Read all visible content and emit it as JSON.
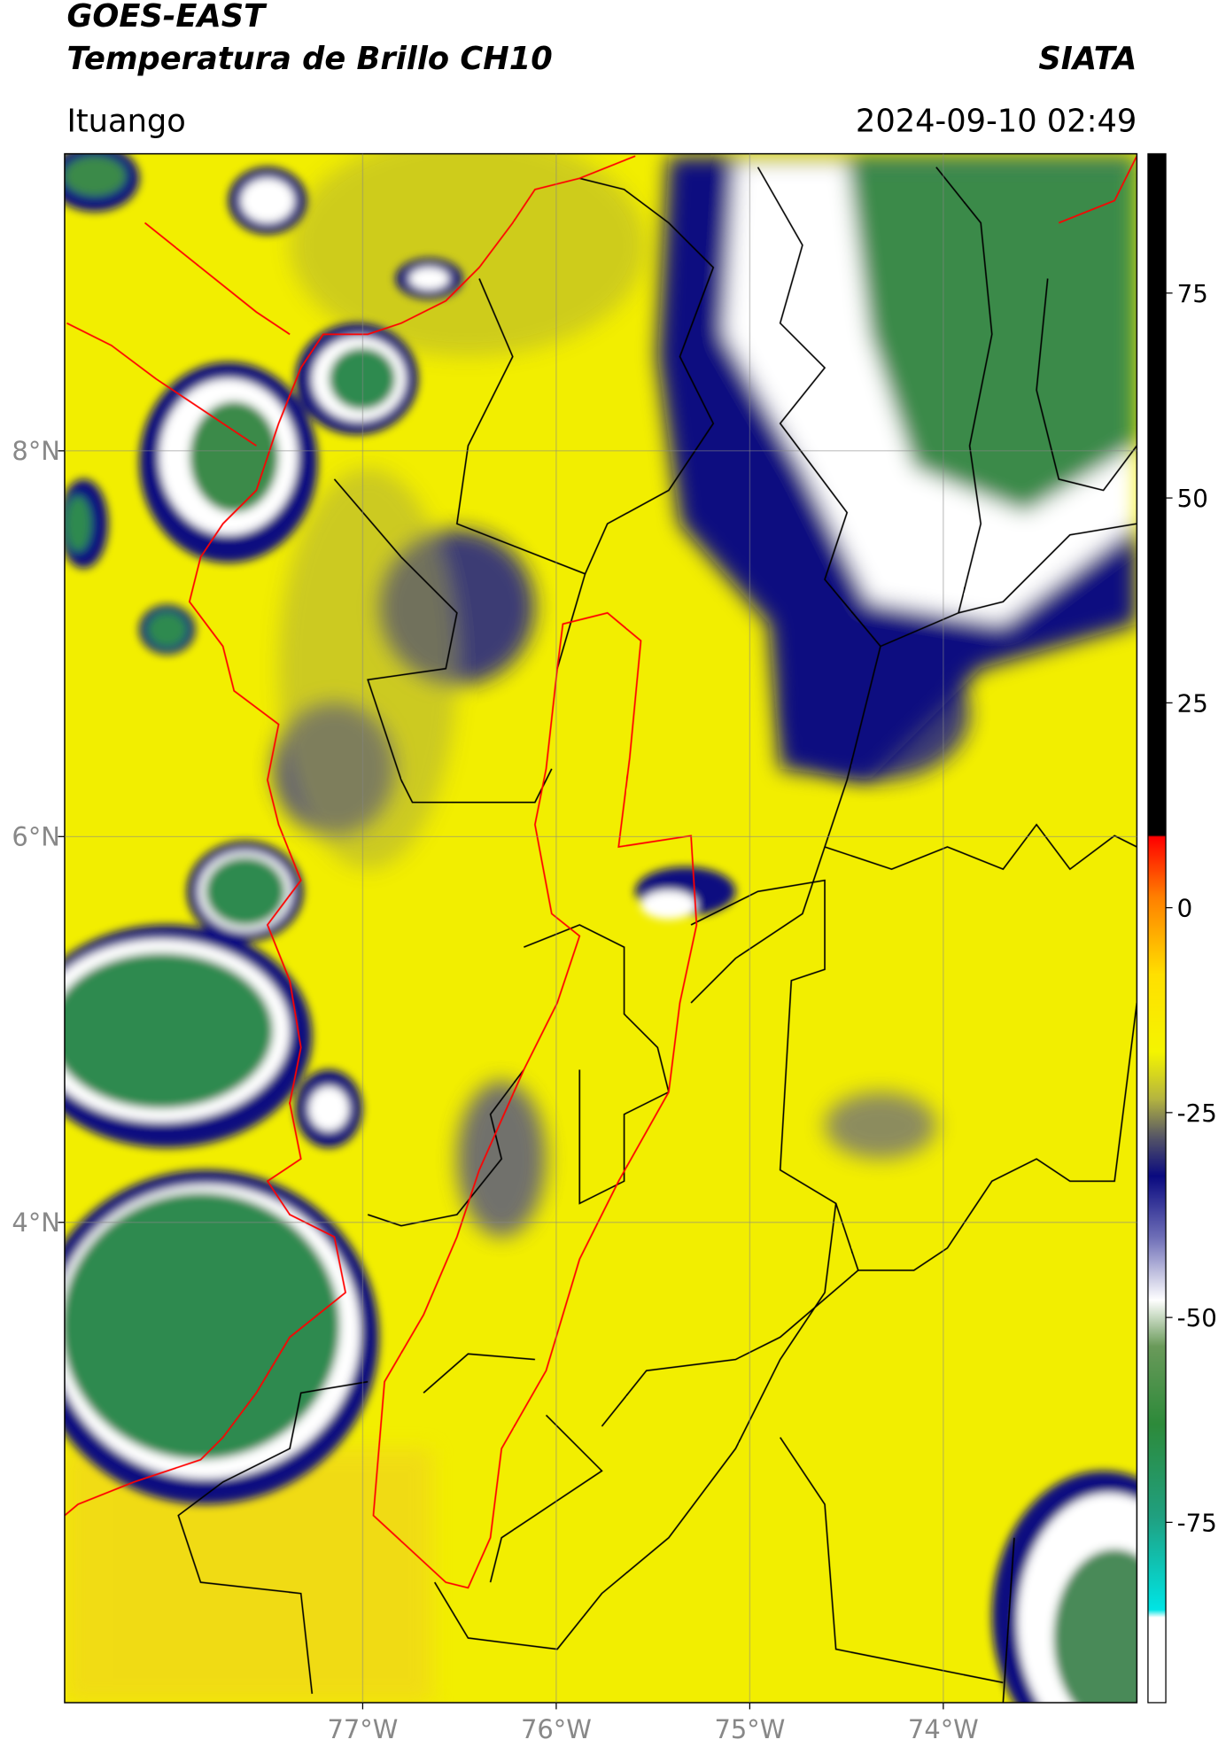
{
  "header": {
    "satellite": "GOES-EAST",
    "product": "Temperatura de Brillo CH10",
    "organization": "SIATA",
    "location": "Ituango",
    "datetime": "2024-09-10 02:49"
  },
  "map": {
    "lat_range": [
      9.54,
      1.51
    ],
    "lon_range": [
      -78.54,
      -73.0
    ],
    "lat_ticks": [
      {
        "value": 8,
        "label": "8°N"
      },
      {
        "value": 6,
        "label": "6°N"
      },
      {
        "value": 4,
        "label": "4°N"
      }
    ],
    "lon_ticks": [
      {
        "value": -77,
        "label": "77°W"
      },
      {
        "value": -76,
        "label": "76°W"
      },
      {
        "value": -75,
        "label": "75°W"
      },
      {
        "value": -74,
        "label": "74°W"
      }
    ]
  },
  "colorbar": {
    "range": [
      92,
      -97
    ],
    "ticks": [
      75,
      50,
      25,
      0,
      -25,
      -50,
      -75
    ]
  }
}
